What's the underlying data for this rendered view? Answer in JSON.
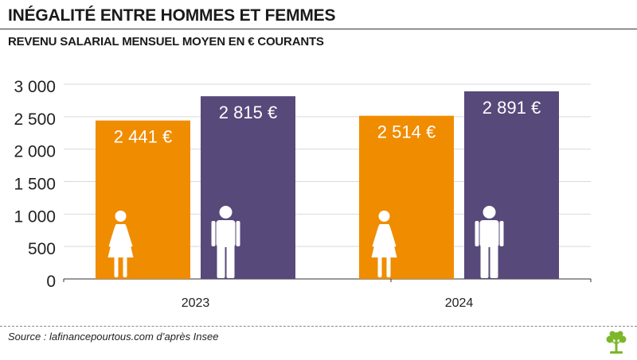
{
  "header": {
    "title": "Inégalité entre hommes et femmes",
    "subtitle": "Revenu salarial mensuel moyen en € courants"
  },
  "footer": {
    "source": "Source : lafinancepourtous.com d’après Insee"
  },
  "icons": {
    "female": "woman-icon",
    "male": "man-icon",
    "logo": "tree-logo-icon"
  },
  "colors": {
    "women": "#F08C00",
    "men": "#57497A",
    "grid": "#D9D9D9",
    "logo": "#7CB72A"
  },
  "chart_data": {
    "type": "bar",
    "title": "",
    "xlabel": "",
    "ylabel": "",
    "categories": [
      "2023",
      "2024"
    ],
    "series": [
      {
        "key": "women",
        "values": [
          2441,
          2514
        ],
        "labels": [
          "2 441 €",
          "2 514 €"
        ]
      },
      {
        "key": "men",
        "values": [
          2815,
          2891
        ],
        "labels": [
          "2 815 €",
          "2 891 €"
        ]
      }
    ],
    "ylim": [
      0,
      3000
    ],
    "yticks": [
      0,
      500,
      1000,
      1500,
      2000,
      2500,
      3000
    ],
    "ytick_labels": [
      "0",
      "500",
      "1 000",
      "1 500",
      "2 000",
      "2 500",
      "3 000"
    ],
    "grid": true,
    "legend": "none"
  }
}
